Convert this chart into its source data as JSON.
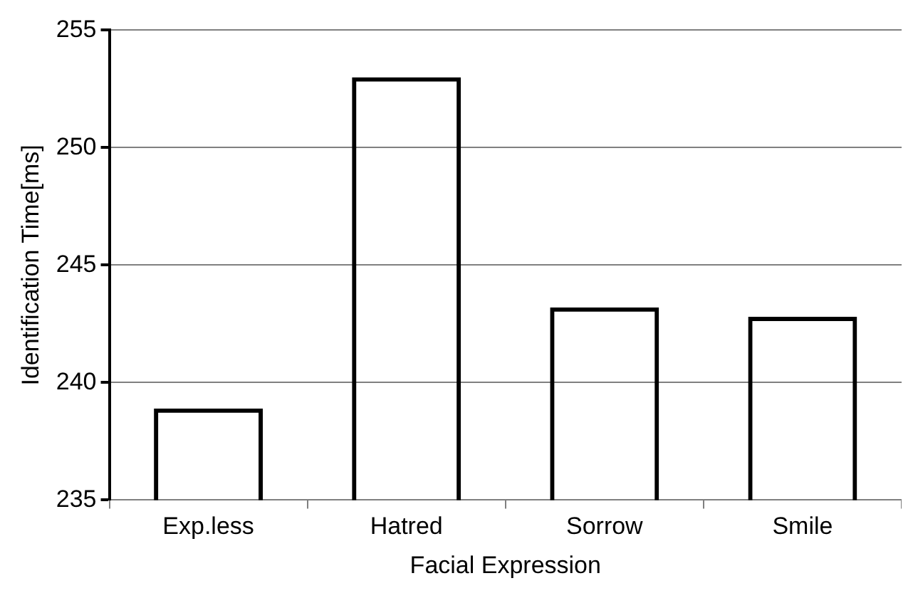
{
  "chart_data": {
    "type": "bar",
    "xlabel": "Facial Expression",
    "ylabel": "Identification Time[ms]",
    "categories": [
      "Exp.less",
      "Hatred",
      "Sorrow",
      "Smile"
    ],
    "values": [
      238.9,
      253.0,
      243.2,
      242.8
    ],
    "color": "#000000",
    "ylim": [
      235,
      255
    ],
    "yticks": [
      235,
      240,
      245,
      250,
      255
    ],
    "grid": "y"
  }
}
